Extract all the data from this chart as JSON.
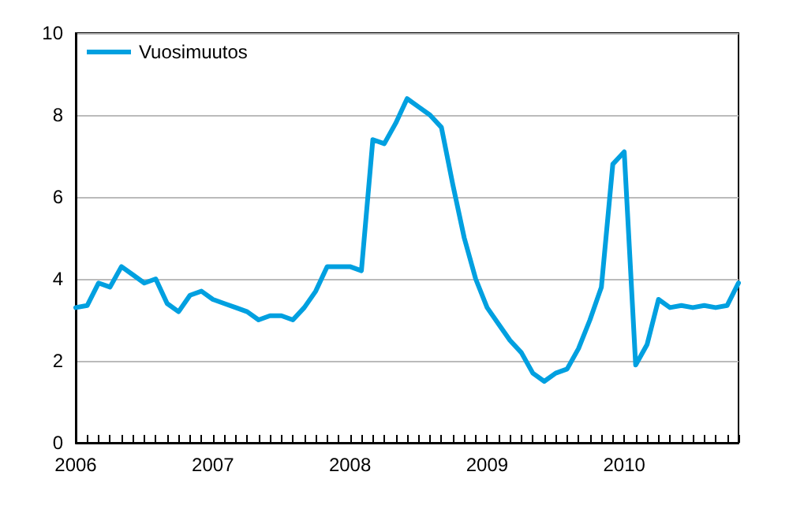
{
  "chart_data": {
    "type": "line",
    "categories": [
      "2006",
      null,
      null,
      null,
      null,
      null,
      null,
      null,
      null,
      null,
      null,
      null,
      "2007",
      null,
      null,
      null,
      null,
      null,
      null,
      null,
      null,
      null,
      null,
      null,
      "2008",
      null,
      null,
      null,
      null,
      null,
      null,
      null,
      null,
      null,
      null,
      null,
      "2009",
      null,
      null,
      null,
      null,
      null,
      null,
      null,
      null,
      null,
      null,
      null,
      "2010",
      null,
      null,
      null,
      null,
      null,
      null,
      null,
      null,
      null,
      null
    ],
    "series": [
      {
        "name": "Vuosimuutos",
        "color": "#00a0e0",
        "values": [
          3.3,
          3.35,
          3.9,
          3.8,
          4.3,
          4.1,
          3.9,
          4.0,
          3.4,
          3.2,
          3.6,
          3.7,
          3.5,
          3.4,
          3.3,
          3.2,
          3.0,
          3.1,
          3.1,
          3.0,
          3.3,
          3.7,
          4.3,
          4.3,
          4.3,
          4.2,
          7.4,
          7.3,
          7.8,
          8.4,
          8.2,
          8.0,
          7.7,
          6.3,
          5.0,
          4.0,
          3.3,
          2.9,
          2.5,
          2.2,
          1.7,
          1.5,
          1.7,
          1.8,
          2.3,
          3.0,
          3.8,
          6.8,
          7.1,
          1.9,
          2.4,
          3.5,
          3.3,
          3.35,
          3.3,
          3.35,
          3.3,
          3.35,
          3.9
        ]
      }
    ],
    "ylim": [
      0,
      10
    ],
    "yticks": [
      0,
      2,
      4,
      6,
      8,
      10
    ],
    "grid": "y",
    "legend": "top left",
    "marker": "none",
    "line_style": "solid"
  }
}
